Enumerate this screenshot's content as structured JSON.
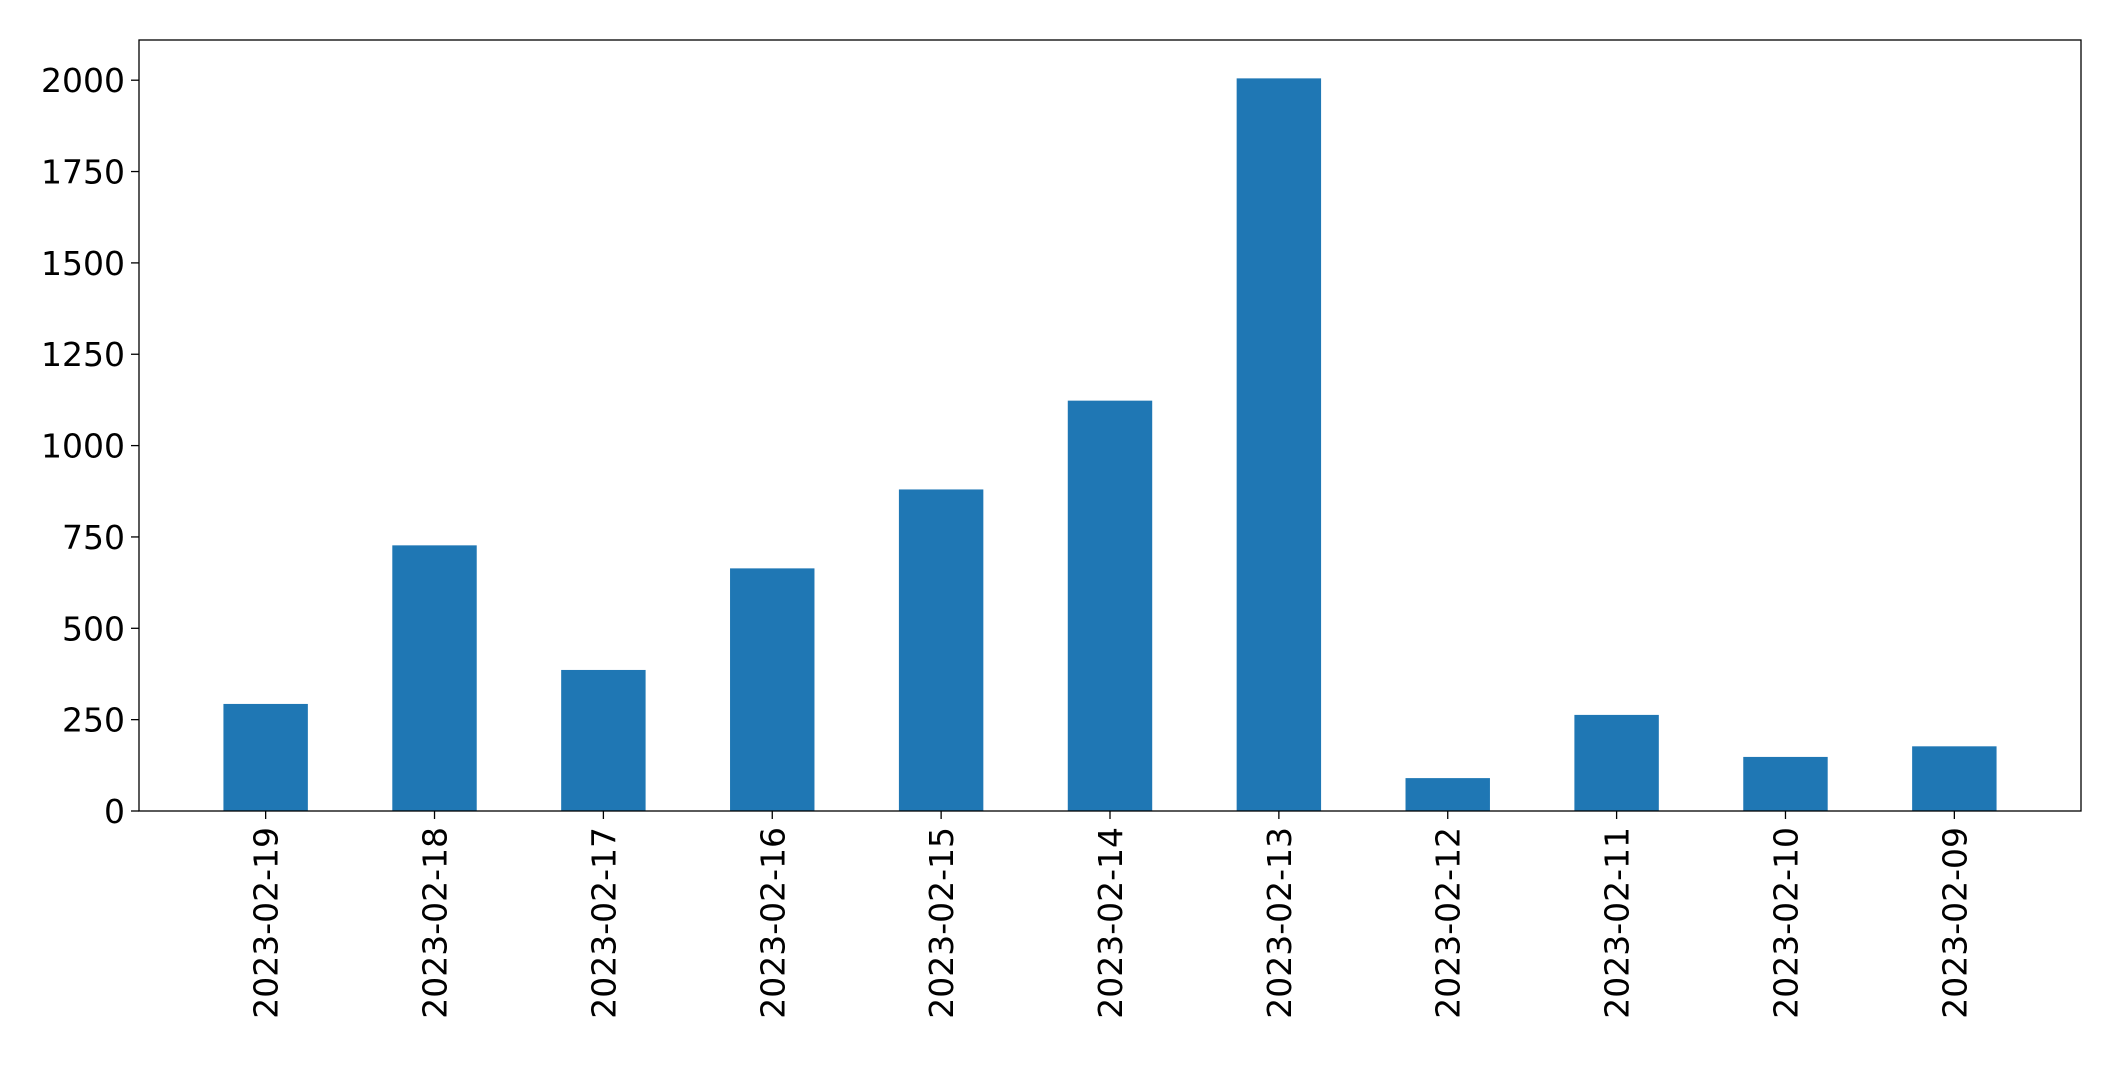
{
  "chart_data": {
    "type": "bar",
    "title": "",
    "xlabel": "",
    "ylabel": "",
    "categories": [
      "2023-02-19",
      "2023-02-18",
      "2023-02-17",
      "2023-02-16",
      "2023-02-15",
      "2023-02-14",
      "2023-02-13",
      "2023-02-12",
      "2023-02-11",
      "2023-02-10",
      "2023-02-09"
    ],
    "values": [
      293,
      727,
      386,
      664,
      880,
      1123,
      2005,
      90,
      263,
      148,
      177
    ],
    "ylim": [
      0,
      2110
    ],
    "yticks": [
      0,
      250,
      500,
      750,
      1000,
      1250,
      1500,
      1750,
      2000
    ],
    "ytick_labels": [
      "0",
      "250",
      "500",
      "750",
      "1000",
      "1250",
      "1500",
      "1750",
      "2000"
    ],
    "bar_color": "#1f77b4",
    "grid": false,
    "legend": "none"
  }
}
